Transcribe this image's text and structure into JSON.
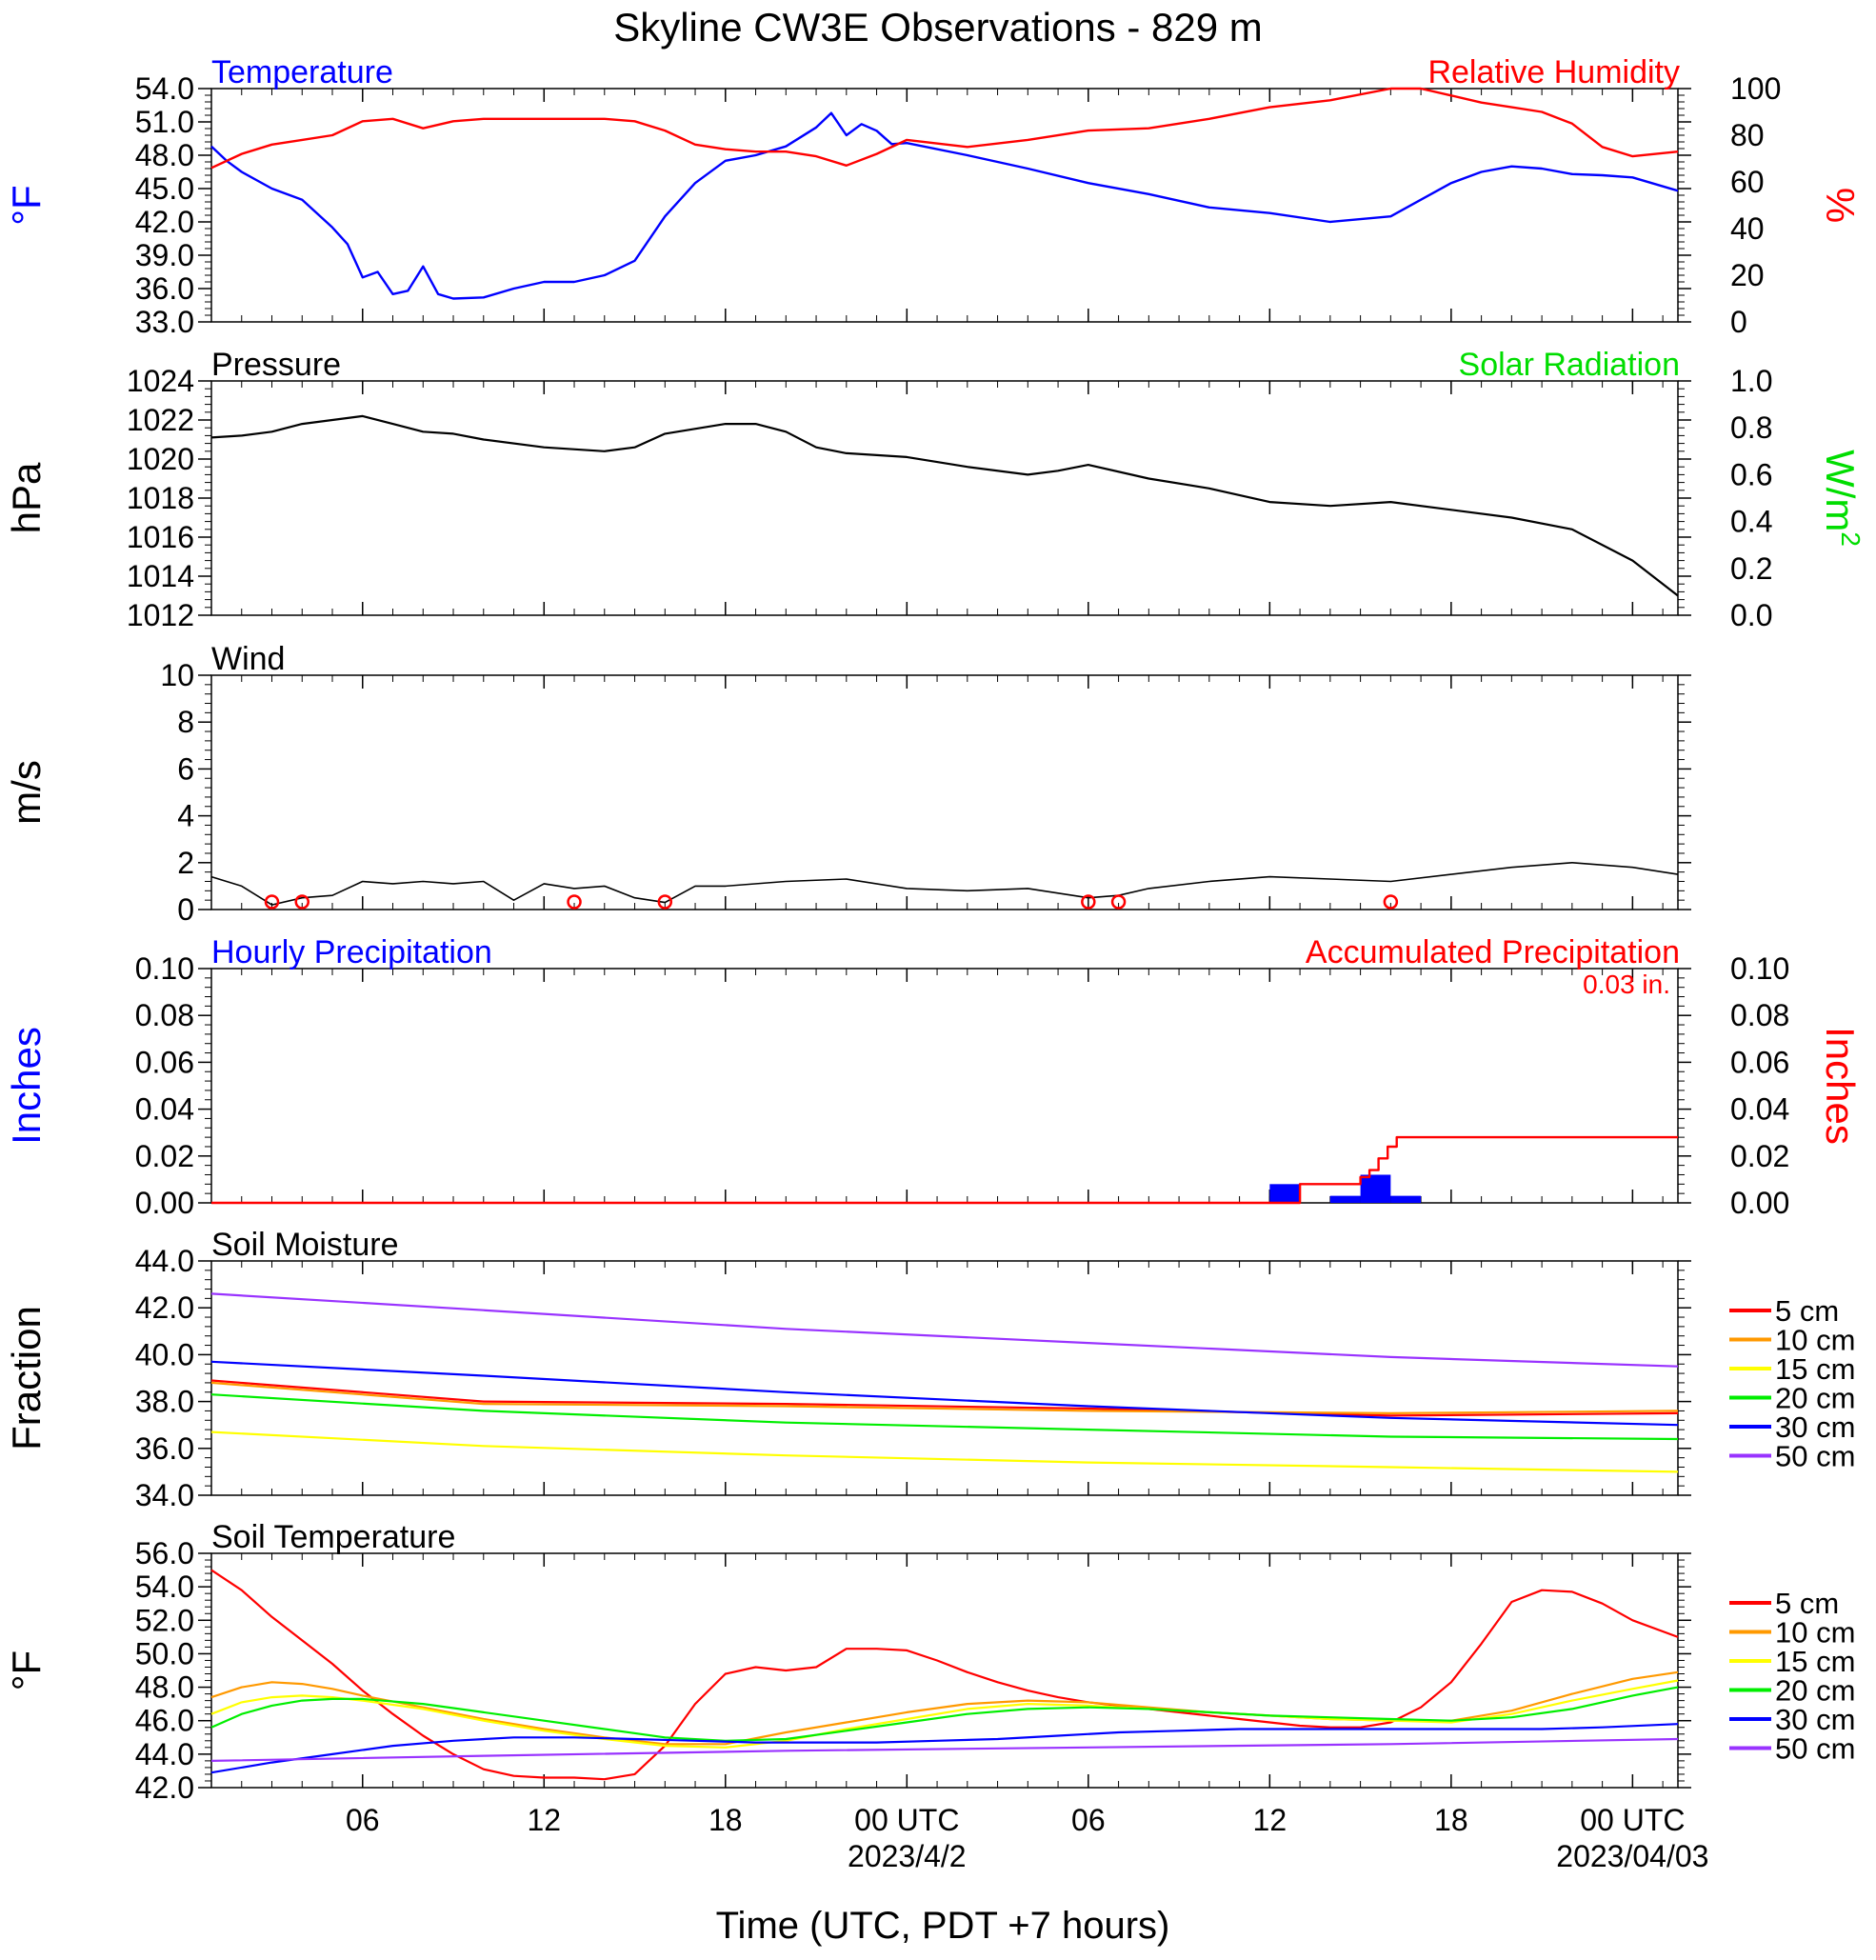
{
  "title": "Skyline CW3E Observations - 829 m",
  "x_axis": {
    "label": "Time (UTC, PDT +7 hours)",
    "ticks": [
      {
        "hour": 6,
        "label": "06",
        "sub": ""
      },
      {
        "hour": 12,
        "label": "12",
        "sub": ""
      },
      {
        "hour": 18,
        "label": "18",
        "sub": ""
      },
      {
        "hour": 24,
        "label": "00 UTC",
        "sub": "2023/4/2"
      },
      {
        "hour": 30,
        "label": "06",
        "sub": ""
      },
      {
        "hour": 36,
        "label": "12",
        "sub": ""
      },
      {
        "hour": 42,
        "label": "18",
        "sub": ""
      },
      {
        "hour": 48,
        "label": "00 UTC",
        "sub": "2023/04/03"
      }
    ],
    "range_hours": [
      1,
      49.5
    ]
  },
  "panels": {
    "temp_rh": {
      "left_title": "Temperature",
      "right_title": "Relative Humidity",
      "left_unit": "°F",
      "right_unit": "%",
      "left_ticks": [
        "54.0",
        "51.0",
        "48.0",
        "45.0",
        "42.0",
        "39.0",
        "36.0",
        "33.0"
      ],
      "right_ticks": [
        "100",
        "80",
        "60",
        "40",
        "20",
        "0"
      ],
      "colors": {
        "left": "#0000ff",
        "right": "#ff0000"
      }
    },
    "pressure": {
      "left_title": "Pressure",
      "right_title": "Solar Radiation",
      "left_unit": "hPa",
      "right_unit": "W/m",
      "right_unit_sup": "2",
      "left_ticks": [
        "1024",
        "1022",
        "1020",
        "1018",
        "1016",
        "1014",
        "1012"
      ],
      "right_ticks": [
        "1.0",
        "0.8",
        "0.6",
        "0.4",
        "0.2",
        "0.0"
      ],
      "colors": {
        "right_title": "#00dd00"
      }
    },
    "wind": {
      "left_title": "Wind",
      "left_unit": "m/s",
      "left_ticks": [
        "10",
        "8",
        "6",
        "4",
        "2",
        "0"
      ]
    },
    "precip": {
      "left_title": "Hourly Precipitation",
      "right_title": "Accumulated Precipitation",
      "total_label": "0.03 in.",
      "left_unit": "Inches",
      "right_unit": "Inches",
      "left_ticks": [
        "0.10",
        "0.08",
        "0.06",
        "0.04",
        "0.02",
        "0.00"
      ],
      "right_ticks": [
        "0.10",
        "0.08",
        "0.06",
        "0.04",
        "0.02",
        "0.00"
      ]
    },
    "soil_moisture": {
      "left_title": "Soil Moisture",
      "left_unit": "Fraction",
      "left_ticks": [
        "44.0",
        "42.0",
        "40.0",
        "38.0",
        "36.0",
        "34.0"
      ]
    },
    "soil_temp": {
      "left_title": "Soil Temperature",
      "left_unit": "°F",
      "left_ticks": [
        "56.0",
        "54.0",
        "52.0",
        "50.0",
        "48.0",
        "46.0",
        "44.0",
        "42.0"
      ]
    }
  },
  "legend": [
    {
      "label": "5 cm",
      "color": "#ff0000"
    },
    {
      "label": "10 cm",
      "color": "#ff9900"
    },
    {
      "label": "15 cm",
      "color": "#ffff00"
    },
    {
      "label": "20 cm",
      "color": "#00ee00"
    },
    {
      "label": "30 cm",
      "color": "#0000ff"
    },
    {
      "label": "50 cm",
      "color": "#9933ff"
    }
  ],
  "chart_data": [
    {
      "type": "line",
      "panel": "temp_rh",
      "xlabel": "Time (UTC, PDT +7 hours)",
      "ylim_left": [
        33,
        54
      ],
      "ylim_right": [
        0,
        100
      ],
      "series": [
        {
          "name": "Temperature",
          "axis": "left",
          "unit": "°F",
          "x": [
            1,
            1.5,
            2,
            3,
            4,
            5,
            5.5,
            6,
            6.5,
            7,
            7.5,
            8,
            8.5,
            9,
            10,
            11,
            12,
            13,
            14,
            15,
            16,
            17,
            18,
            19,
            20,
            21,
            21.5,
            22,
            22.5,
            23,
            23.5,
            24,
            26,
            28,
            30,
            32,
            34,
            36,
            38,
            40,
            41,
            42,
            43,
            44,
            45,
            46,
            47,
            48,
            49.5
          ],
          "y": [
            48.8,
            47.5,
            46.5,
            45.0,
            44.0,
            41.5,
            40.0,
            37.0,
            37.5,
            35.5,
            35.8,
            38.0,
            35.5,
            35.1,
            35.2,
            36.0,
            36.6,
            36.6,
            37.2,
            38.5,
            42.5,
            45.5,
            47.5,
            48.0,
            48.8,
            50.5,
            51.8,
            49.8,
            50.8,
            50.2,
            49.0,
            49.1,
            48.0,
            46.8,
            45.5,
            44.5,
            43.3,
            42.8,
            42.0,
            42.5,
            44.0,
            45.5,
            46.5,
            47.0,
            46.8,
            46.3,
            46.2,
            46.0,
            44.8
          ]
        },
        {
          "name": "Relative Humidity",
          "axis": "right",
          "unit": "%",
          "x": [
            1,
            2,
            3,
            4,
            5,
            6,
            7,
            8,
            9,
            10,
            12,
            14,
            15,
            16,
            17,
            18,
            19,
            20,
            21,
            22,
            23,
            24,
            26,
            28,
            30,
            32,
            34,
            36,
            38,
            40,
            41,
            42,
            43,
            44,
            45,
            46,
            47,
            48,
            49.5
          ],
          "y": [
            66,
            72,
            76,
            78,
            80,
            86,
            87,
            83,
            86,
            87,
            87,
            87,
            86,
            82,
            76,
            74,
            73,
            73,
            71,
            67,
            72,
            78,
            75,
            78,
            82,
            83,
            87,
            92,
            95,
            100,
            100,
            97,
            94,
            92,
            90,
            85,
            75,
            71,
            73
          ]
        }
      ]
    },
    {
      "type": "line",
      "panel": "pressure",
      "ylim_left": [
        1012,
        1024
      ],
      "ylim_right": [
        0,
        1
      ],
      "series": [
        {
          "name": "Pressure",
          "axis": "left",
          "unit": "hPa",
          "x": [
            1,
            2,
            3,
            4,
            5,
            6,
            7,
            8,
            9,
            10,
            12,
            14,
            15,
            16,
            18,
            19,
            20,
            21,
            22,
            24,
            26,
            28,
            29,
            30,
            32,
            34,
            36,
            38,
            40,
            42,
            44,
            46,
            48,
            49.5
          ],
          "y": [
            1021.1,
            1021.2,
            1021.4,
            1021.8,
            1022.0,
            1022.2,
            1021.8,
            1021.4,
            1021.3,
            1021.0,
            1020.6,
            1020.4,
            1020.6,
            1021.3,
            1021.8,
            1021.8,
            1021.4,
            1020.6,
            1020.3,
            1020.1,
            1019.6,
            1019.2,
            1019.4,
            1019.7,
            1019.0,
            1018.5,
            1017.8,
            1017.6,
            1017.8,
            1017.4,
            1017.0,
            1016.4,
            1014.8,
            1013.0
          ]
        }
      ]
    },
    {
      "type": "line",
      "panel": "wind",
      "ylim": [
        0,
        10
      ],
      "series": [
        {
          "name": "Wind",
          "unit": "m/s",
          "x": [
            1,
            2,
            3,
            4,
            5,
            6,
            7,
            8,
            9,
            10,
            11,
            12,
            13,
            14,
            15,
            16,
            17,
            18,
            20,
            22,
            24,
            26,
            28,
            30,
            31,
            32,
            34,
            36,
            38,
            40,
            42,
            44,
            46,
            48,
            49.5
          ],
          "y": [
            1.4,
            1.0,
            0.2,
            0.5,
            0.6,
            1.2,
            1.1,
            1.2,
            1.1,
            1.2,
            0.4,
            1.1,
            0.9,
            1.0,
            0.5,
            0.3,
            1.0,
            1.0,
            1.2,
            1.3,
            0.9,
            0.8,
            0.9,
            0.5,
            0.6,
            0.9,
            1.2,
            1.4,
            1.3,
            1.2,
            1.5,
            1.8,
            2.0,
            1.8,
            1.5
          ]
        }
      ],
      "calm_markers_hours": [
        3,
        4,
        13,
        16,
        30,
        31,
        40
      ]
    },
    {
      "type": "bar",
      "panel": "precip",
      "ylim_left": [
        0,
        0.1
      ],
      "ylim_right": [
        0,
        0.1
      ],
      "hourly_precip": {
        "name": "Hourly Precipitation",
        "unit": "in",
        "bars": [
          {
            "start": 36,
            "end": 37,
            "value": 0.008
          },
          {
            "start": 38,
            "end": 39,
            "value": 0.003
          },
          {
            "start": 39,
            "end": 40,
            "value": 0.012
          },
          {
            "start": 40,
            "end": 41,
            "value": 0.003
          }
        ]
      },
      "series": [
        {
          "name": "Accumulated Precipitation",
          "axis": "right",
          "unit": "in",
          "x": [
            1,
            36.8,
            37.0,
            38.8,
            39.0,
            39.3,
            39.6,
            39.9,
            40.2,
            49.5
          ],
          "y": [
            0,
            0,
            0.008,
            0.008,
            0.011,
            0.014,
            0.019,
            0.024,
            0.028,
            0.028
          ]
        }
      ]
    },
    {
      "type": "line",
      "panel": "soil_moisture",
      "ylim": [
        34,
        44
      ],
      "series": [
        {
          "name": "5 cm",
          "x": [
            1,
            10,
            20,
            30,
            40,
            49.5
          ],
          "y": [
            38.9,
            38.0,
            37.9,
            37.7,
            37.4,
            37.5
          ]
        },
        {
          "name": "10 cm",
          "x": [
            1,
            10,
            20,
            30,
            40,
            49.5
          ],
          "y": [
            38.8,
            37.9,
            37.8,
            37.6,
            37.5,
            37.6
          ]
        },
        {
          "name": "15 cm",
          "x": [
            1,
            10,
            20,
            30,
            40,
            49.5
          ],
          "y": [
            36.7,
            36.1,
            35.7,
            35.4,
            35.2,
            35.0
          ]
        },
        {
          "name": "20 cm",
          "x": [
            1,
            10,
            20,
            30,
            40,
            49.5
          ],
          "y": [
            38.3,
            37.6,
            37.1,
            36.8,
            36.5,
            36.4
          ]
        },
        {
          "name": "30 cm",
          "x": [
            1,
            10,
            20,
            30,
            40,
            49.5
          ],
          "y": [
            39.7,
            39.1,
            38.4,
            37.8,
            37.3,
            37.0
          ]
        },
        {
          "name": "50 cm",
          "x": [
            1,
            10,
            20,
            30,
            40,
            49.5
          ],
          "y": [
            42.6,
            41.9,
            41.1,
            40.5,
            39.9,
            39.5
          ]
        }
      ]
    },
    {
      "type": "line",
      "panel": "soil_temp",
      "ylim": [
        42,
        56
      ],
      "series": [
        {
          "name": "5 cm",
          "x": [
            1,
            2,
            3,
            4,
            5,
            6,
            7,
            8,
            9,
            10,
            11,
            12,
            13,
            14,
            15,
            16,
            17,
            18,
            19,
            20,
            21,
            22,
            23,
            24,
            25,
            26,
            27,
            28,
            29,
            30,
            31,
            32,
            33,
            34,
            35,
            36,
            37,
            38,
            39,
            40,
            41,
            42,
            43,
            44,
            45,
            46,
            47,
            48,
            49.5
          ],
          "y": [
            55.0,
            53.8,
            52.2,
            50.8,
            49.4,
            47.8,
            46.4,
            45.1,
            44.0,
            43.1,
            42.7,
            42.6,
            42.6,
            42.5,
            42.8,
            44.5,
            47.0,
            48.8,
            49.2,
            49.0,
            49.2,
            50.3,
            50.3,
            50.2,
            49.6,
            48.9,
            48.3,
            47.8,
            47.4,
            47.1,
            46.9,
            46.7,
            46.5,
            46.3,
            46.1,
            45.9,
            45.7,
            45.6,
            45.6,
            45.9,
            46.8,
            48.3,
            50.6,
            53.1,
            53.8,
            53.7,
            53.0,
            52.0,
            51.0
          ]
        },
        {
          "name": "10 cm",
          "x": [
            1,
            2,
            3,
            4,
            5,
            6,
            8,
            10,
            12,
            14,
            16,
            18,
            20,
            22,
            24,
            26,
            28,
            30,
            32,
            34,
            36,
            38,
            40,
            42,
            44,
            46,
            48,
            49.5
          ],
          "y": [
            47.4,
            48.0,
            48.3,
            48.2,
            47.9,
            47.5,
            46.8,
            46.1,
            45.5,
            45.0,
            44.6,
            44.6,
            45.3,
            45.9,
            46.5,
            47.0,
            47.2,
            47.1,
            46.8,
            46.5,
            46.3,
            46.1,
            46.0,
            46.0,
            46.6,
            47.6,
            48.5,
            48.9
          ]
        },
        {
          "name": "15 cm",
          "x": [
            1,
            2,
            3,
            4,
            5,
            6,
            8,
            10,
            12,
            14,
            16,
            18,
            20,
            22,
            24,
            26,
            28,
            30,
            32,
            34,
            36,
            38,
            40,
            42,
            44,
            46,
            48,
            49.5
          ],
          "y": [
            46.4,
            47.1,
            47.4,
            47.5,
            47.4,
            47.2,
            46.7,
            46.0,
            45.4,
            44.9,
            44.5,
            44.4,
            44.8,
            45.5,
            46.1,
            46.7,
            47.0,
            46.9,
            46.7,
            46.5,
            46.3,
            46.1,
            46.0,
            45.9,
            46.4,
            47.2,
            47.9,
            48.4
          ]
        },
        {
          "name": "20 cm",
          "x": [
            1,
            2,
            3,
            4,
            5,
            6,
            8,
            10,
            12,
            14,
            16,
            18,
            20,
            22,
            24,
            26,
            28,
            30,
            32,
            34,
            36,
            38,
            40,
            42,
            44,
            46,
            48,
            49.5
          ],
          "y": [
            45.6,
            46.4,
            46.9,
            47.2,
            47.3,
            47.3,
            47.0,
            46.5,
            46.0,
            45.5,
            45.0,
            44.8,
            44.9,
            45.4,
            45.9,
            46.4,
            46.7,
            46.8,
            46.7,
            46.5,
            46.3,
            46.2,
            46.1,
            46.0,
            46.2,
            46.7,
            47.5,
            48.0
          ]
        },
        {
          "name": "30 cm",
          "x": [
            1,
            3,
            5,
            7,
            9,
            11,
            13,
            15,
            17,
            19,
            21,
            23,
            25,
            27,
            29,
            31,
            33,
            35,
            37,
            39,
            41,
            43,
            45,
            47,
            49.5
          ],
          "y": [
            42.9,
            43.5,
            44.0,
            44.5,
            44.8,
            45.0,
            45.0,
            44.9,
            44.8,
            44.7,
            44.7,
            44.7,
            44.8,
            44.9,
            45.1,
            45.3,
            45.4,
            45.5,
            45.5,
            45.5,
            45.5,
            45.5,
            45.5,
            45.6,
            45.8
          ]
        },
        {
          "name": "50 cm",
          "x": [
            1,
            10,
            20,
            30,
            40,
            49.5
          ],
          "y": [
            43.6,
            43.9,
            44.2,
            44.4,
            44.6,
            44.9
          ]
        }
      ]
    }
  ]
}
